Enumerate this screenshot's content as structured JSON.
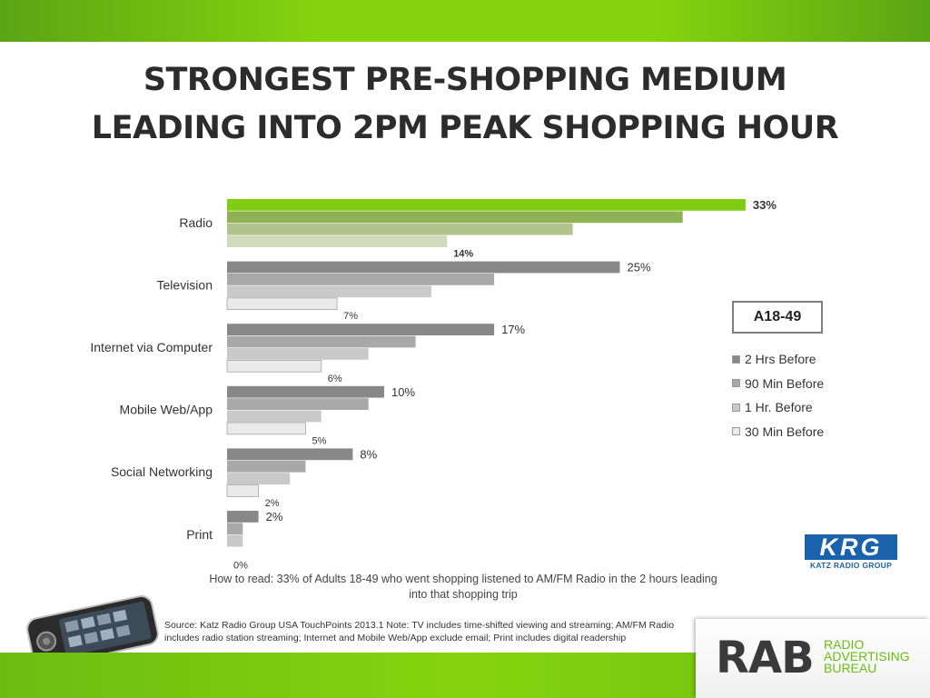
{
  "slide": {
    "title_lines": [
      "STRONGEST PRE-SHOPPING MEDIUM",
      "LEADING INTO 2PM PEAK SHOPPING HOUR"
    ],
    "demographic_label": "A18-49",
    "how_to_read_lines": [
      "How to read: 33% of Adults 18-49 who went shopping listened to AM/FM Radio in the 2 hours leading",
      "into that shopping trip"
    ],
    "source_lines": [
      "Source: Katz Radio Group USA TouchPoints  2013.1 Note:  TV includes  time-shifted viewing and streaming; AM/FM Radio",
      "includes radio station streaming; Internet and Mobile Web/App exclude email; Print includes digital readership"
    ],
    "krg_logo": {
      "letters": "KRG",
      "caption": "KATZ RADIO GROUP",
      "color": "#1a63ac"
    },
    "rab_logo": {
      "letters": "RAB",
      "words": [
        "RADIO",
        "ADVERTISING",
        "BUREAU"
      ],
      "color": "#6bbd12"
    },
    "device_icon": "smartphone-icon"
  },
  "chart_data": {
    "type": "bar",
    "orientation": "horizontal",
    "categories": [
      "Radio",
      "Television",
      "Internet via Computer",
      "Mobile Web/App",
      "Social Networking",
      "Print"
    ],
    "series": [
      {
        "name": "2 Hrs Before",
        "values": [
          33,
          25,
          17,
          10,
          8,
          2
        ],
        "labels": [
          "33%",
          "25%",
          "17%",
          "10%",
          "8%",
          "2%"
        ]
      },
      {
        "name": "90 Min Before",
        "values": [
          29,
          17,
          12,
          9,
          5,
          1
        ]
      },
      {
        "name": "1 Hr. Before",
        "values": [
          22,
          13,
          9,
          6,
          4,
          1
        ]
      },
      {
        "name": "30 Min Before",
        "values": [
          14,
          7,
          6,
          5,
          2,
          0
        ],
        "labels": [
          "14%",
          "7%",
          "6%",
          "5%",
          "2%",
          "0%"
        ]
      }
    ],
    "series_colors": [
      "#888888",
      "#a8a8a8",
      "#c9c9c9",
      "#eaeaea"
    ],
    "highlight_category": "Radio",
    "highlight_colors": [
      "#7fcc10",
      "#8fb055",
      "#b1c48e",
      "#d1dbbb"
    ],
    "xlim": [
      0,
      35
    ],
    "legend": "right"
  }
}
